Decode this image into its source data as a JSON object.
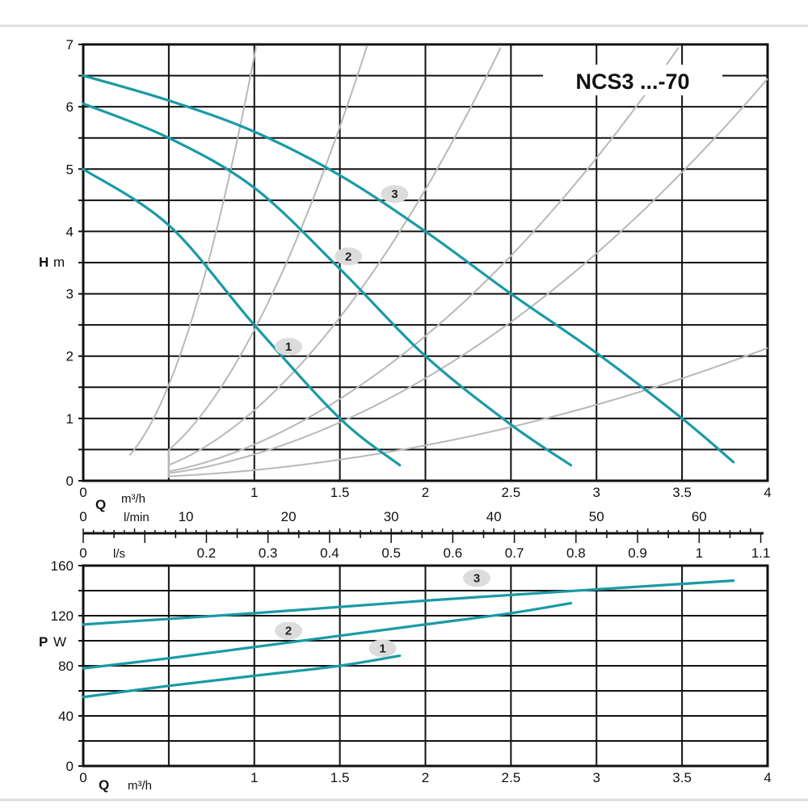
{
  "chart_data": [
    {
      "type": "line",
      "title": "NCS3 ...-70",
      "xlabel": "Q m³/h",
      "ylabel_symbol": "H",
      "ylabel_unit": "m",
      "xlim": [
        0,
        4
      ],
      "ylim": [
        0,
        7
      ],
      "x_ticks": [
        "0",
        "1",
        "1.5",
        "2",
        "2.5",
        "3",
        "3.5",
        "4"
      ],
      "x_tick_values": [
        0,
        1,
        1.5,
        2,
        2.5,
        3,
        3.5,
        4
      ],
      "y_ticks": [
        "0",
        "1",
        "2",
        "3",
        "4",
        "5",
        "6",
        "7"
      ],
      "grid": true,
      "series": [
        {
          "name": "1",
          "x": [
            0,
            0.5,
            1,
            1.5,
            1.85
          ],
          "y": [
            5.0,
            4.1,
            2.5,
            1.0,
            0.25
          ]
        },
        {
          "name": "2",
          "x": [
            0,
            0.5,
            1,
            1.5,
            2,
            2.5,
            2.85
          ],
          "y": [
            6.05,
            5.5,
            4.7,
            3.4,
            2.0,
            0.9,
            0.25
          ]
        },
        {
          "name": "3",
          "x": [
            0,
            0.5,
            1,
            1.5,
            2,
            2.5,
            3,
            3.5,
            3.8
          ],
          "y": [
            6.5,
            6.1,
            5.6,
            4.9,
            4.0,
            3.0,
            2.05,
            1.0,
            0.3
          ]
        }
      ],
      "series_label_positions": [
        {
          "name": "1",
          "x": 1.2,
          "y": 2.15
        },
        {
          "name": "2",
          "x": 1.55,
          "y": 3.6
        },
        {
          "name": "3",
          "x": 1.82,
          "y": 4.6
        }
      ],
      "system_curves_k": [
        7.0,
        2.54,
        1.16,
        0.57,
        0.4,
        0.13
      ],
      "secondary_axes": {
        "lmin": {
          "unit": "l/min",
          "ticks": [
            "0",
            "10",
            "20",
            "30",
            "40",
            "50",
            "60"
          ],
          "values": [
            0,
            10,
            20,
            30,
            40,
            50,
            60
          ]
        },
        "ls": {
          "unit": "l/s",
          "ticks": [
            "0",
            "0.2",
            "0.3",
            "0.4",
            "0.5",
            "0.6",
            "0.7",
            "0.8",
            "0.9",
            "1",
            "1.1"
          ],
          "values": [
            0,
            0.2,
            0.3,
            0.4,
            0.5,
            0.6,
            0.7,
            0.8,
            0.9,
            1,
            1.1
          ]
        }
      },
      "q_symbol": "Q",
      "q_unit": "m³/h"
    },
    {
      "type": "line",
      "xlabel": "Q m³/h",
      "ylabel_symbol": "P",
      "ylabel_unit": "W",
      "xlim": [
        0,
        4
      ],
      "ylim": [
        0,
        160
      ],
      "x_ticks": [
        "0",
        "1",
        "1.5",
        "2",
        "2.5",
        "3",
        "3.5",
        "4"
      ],
      "x_tick_values": [
        0,
        1,
        1.5,
        2,
        2.5,
        3,
        3.5,
        4
      ],
      "y_ticks": [
        "0",
        "40",
        "80",
        "120",
        "160"
      ],
      "y_tick_values": [
        0,
        40,
        80,
        120,
        160
      ],
      "grid": true,
      "series": [
        {
          "name": "1",
          "x": [
            0,
            0.5,
            1,
            1.5,
            1.85
          ],
          "y": [
            55,
            64,
            72,
            80,
            88
          ]
        },
        {
          "name": "2",
          "x": [
            0,
            0.5,
            1,
            1.5,
            2,
            2.5,
            2.85
          ],
          "y": [
            78,
            86,
            95,
            104,
            113,
            122,
            130
          ]
        },
        {
          "name": "3",
          "x": [
            0,
            1,
            2,
            3,
            3.8
          ],
          "y": [
            113,
            122,
            132,
            141,
            148
          ]
        }
      ],
      "series_label_positions": [
        {
          "name": "1",
          "x": 1.75,
          "y": 94
        },
        {
          "name": "2",
          "x": 1.2,
          "y": 108
        },
        {
          "name": "3",
          "x": 2.3,
          "y": 150
        }
      ],
      "q_symbol": "Q",
      "q_unit": "m³/h"
    }
  ],
  "colors": {
    "curve": "#1a9aa6",
    "grid": "#111111",
    "system": "#b8b8b8",
    "label_bg": "#dcdcdc"
  }
}
